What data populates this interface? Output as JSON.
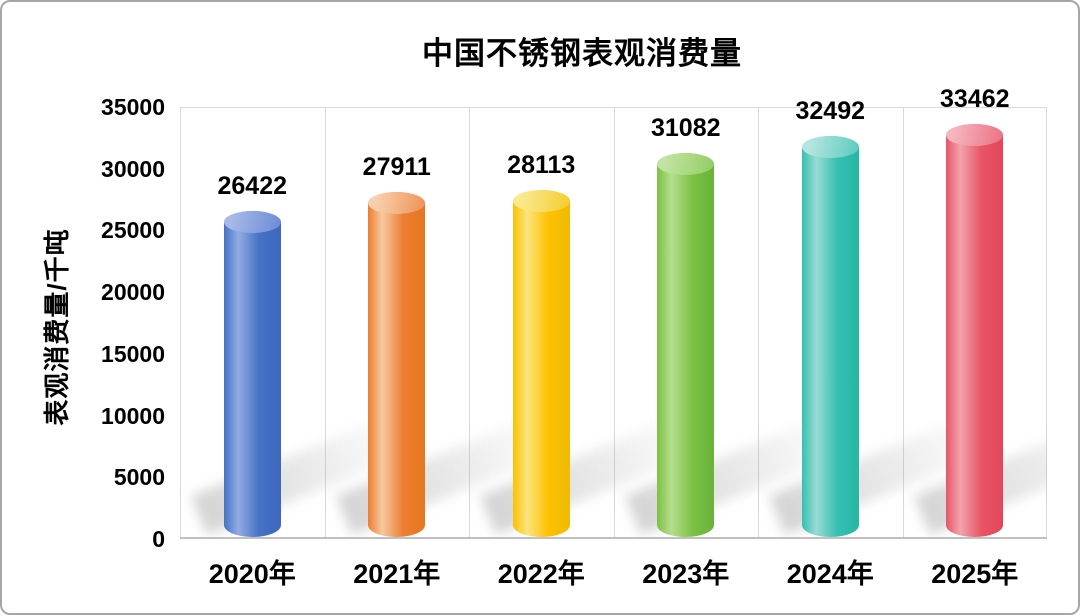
{
  "chart_data": {
    "type": "bar",
    "subtype": "cylinder-3d",
    "title": "中国不锈钢表观消费量",
    "xlabel": "",
    "ylabel": "表观消费量/千吨",
    "categories": [
      "2020年",
      "2021年",
      "2022年",
      "2023年",
      "2024年",
      "2025年"
    ],
    "values": [
      26422,
      27911,
      28113,
      31082,
      32492,
      33462
    ],
    "value_labels": [
      "26422",
      "27911",
      "28113",
      "31082",
      "32492",
      "33462"
    ],
    "ylim": [
      0,
      35000
    ],
    "y_tick_interval": 5000,
    "y_ticks_top_to_bottom": [
      35000,
      30000,
      25000,
      20000,
      15000,
      10000,
      5000,
      0
    ],
    "legend": "none",
    "grid": "vertical-category-gridlines",
    "text_color": "#000000",
    "grid_color": "#d9d9d9",
    "axis_line_color": "#c0c0c0",
    "bar_colors": [
      {
        "name": "blue",
        "light": "#93ABE2",
        "base": "#4472C4",
        "dark": "#3E66BE",
        "cap_light": "#A6B9E8",
        "cap_dark": "#6D8DD6"
      },
      {
        "name": "orange",
        "light": "#F6C9A0",
        "base": "#ED7D31",
        "dark": "#E4771F",
        "cap_light": "#F8D0AC",
        "cap_dark": "#F0955C"
      },
      {
        "name": "yellow",
        "light": "#F9E57F",
        "base": "#FFC000",
        "dark": "#EDBC04",
        "cap_light": "#FAE98F",
        "cap_dark": "#F5CE33"
      },
      {
        "name": "green",
        "light": "#B4DF8E",
        "base": "#7DC143",
        "dark": "#68B33B",
        "cap_light": "#C2E4A2",
        "cap_dark": "#94CE66"
      },
      {
        "name": "teal",
        "light": "#9ADBD4",
        "base": "#35C0B1",
        "dark": "#28B5A6",
        "cap_light": "#B5E5E0",
        "cap_dark": "#5FCCC0"
      },
      {
        "name": "pink",
        "light": "#F2A3AC",
        "base": "#E85566",
        "dark": "#E2465A",
        "cap_light": "#F5B6BD",
        "cap_dark": "#EC7485"
      }
    ]
  }
}
